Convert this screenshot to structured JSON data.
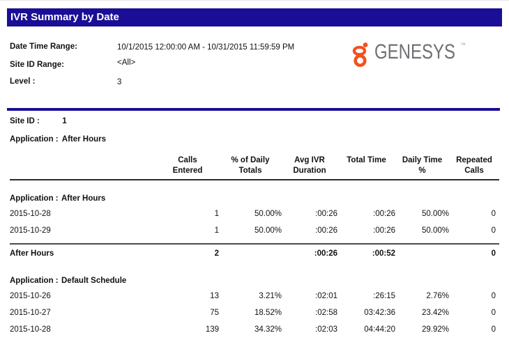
{
  "title": "IVR Summary by Date",
  "info": {
    "date_time_range_label": "Date Time Range:",
    "date_time_range_value": "10/1/2015 12:00:00 AM - 10/31/2015 11:59:59 PM",
    "site_id_range_label": "Site ID Range:",
    "site_id_range_value": "<All>",
    "level_label": "Level :",
    "level_value": "3"
  },
  "logo": {
    "brand": "GENESYS",
    "trademark": "™",
    "icon": "genesys-circles-mark",
    "orange": "#F4511E",
    "gray": "#6F7074"
  },
  "site": {
    "site_id_label": "Site ID :",
    "site_id_value": "1",
    "application_label": "Application :",
    "application_value": "After Hours"
  },
  "table": {
    "headers": [
      {
        "line1": "Calls",
        "line2": "Entered"
      },
      {
        "line1": "% of Daily",
        "line2": "Totals"
      },
      {
        "line1": "Avg IVR",
        "line2": "Duration"
      },
      {
        "line1": "Total Time",
        "line2": ""
      },
      {
        "line1": "Daily Time",
        "line2": "%"
      },
      {
        "line1": "Repeated",
        "line2": "Calls"
      }
    ],
    "sections": [
      {
        "application_label": "Application :",
        "application_name": "After Hours",
        "rows": [
          {
            "date": "2015-10-28",
            "calls": "1",
            "pct": "50.00%",
            "avg": ":00:26",
            "total": ":00:26",
            "daily": "50.00%",
            "repeated": "0"
          },
          {
            "date": "2015-10-29",
            "calls": "1",
            "pct": "50.00%",
            "avg": ":00:26",
            "total": ":00:26",
            "daily": "50.00%",
            "repeated": "0"
          }
        ],
        "total": {
          "label": "After Hours",
          "calls": "2",
          "pct": "",
          "avg": ":00:26",
          "total": ":00:52",
          "daily": "",
          "repeated": "0"
        }
      },
      {
        "application_label": "Application :",
        "application_name": "Default Schedule",
        "rows": [
          {
            "date": "2015-10-26",
            "calls": "13",
            "pct": "3.21%",
            "avg": ":02:01",
            "total": ":26:15",
            "daily": "2.76%",
            "repeated": "0"
          },
          {
            "date": "2015-10-27",
            "calls": "75",
            "pct": "18.52%",
            "avg": ":02:58",
            "total": "03:42:36",
            "daily": "23.42%",
            "repeated": "0"
          },
          {
            "date": "2015-10-28",
            "calls": "139",
            "pct": "34.32%",
            "avg": ":02:03",
            "total": "04:44:20",
            "daily": "29.92%",
            "repeated": "0"
          }
        ],
        "total": null
      }
    ]
  },
  "colors": {
    "navy": "#1B0E96",
    "logo_orange": "#F4511E",
    "logo_gray": "#6F7074",
    "header_rule": "#2B2B2B",
    "total_rule": "#4B4B4B"
  }
}
